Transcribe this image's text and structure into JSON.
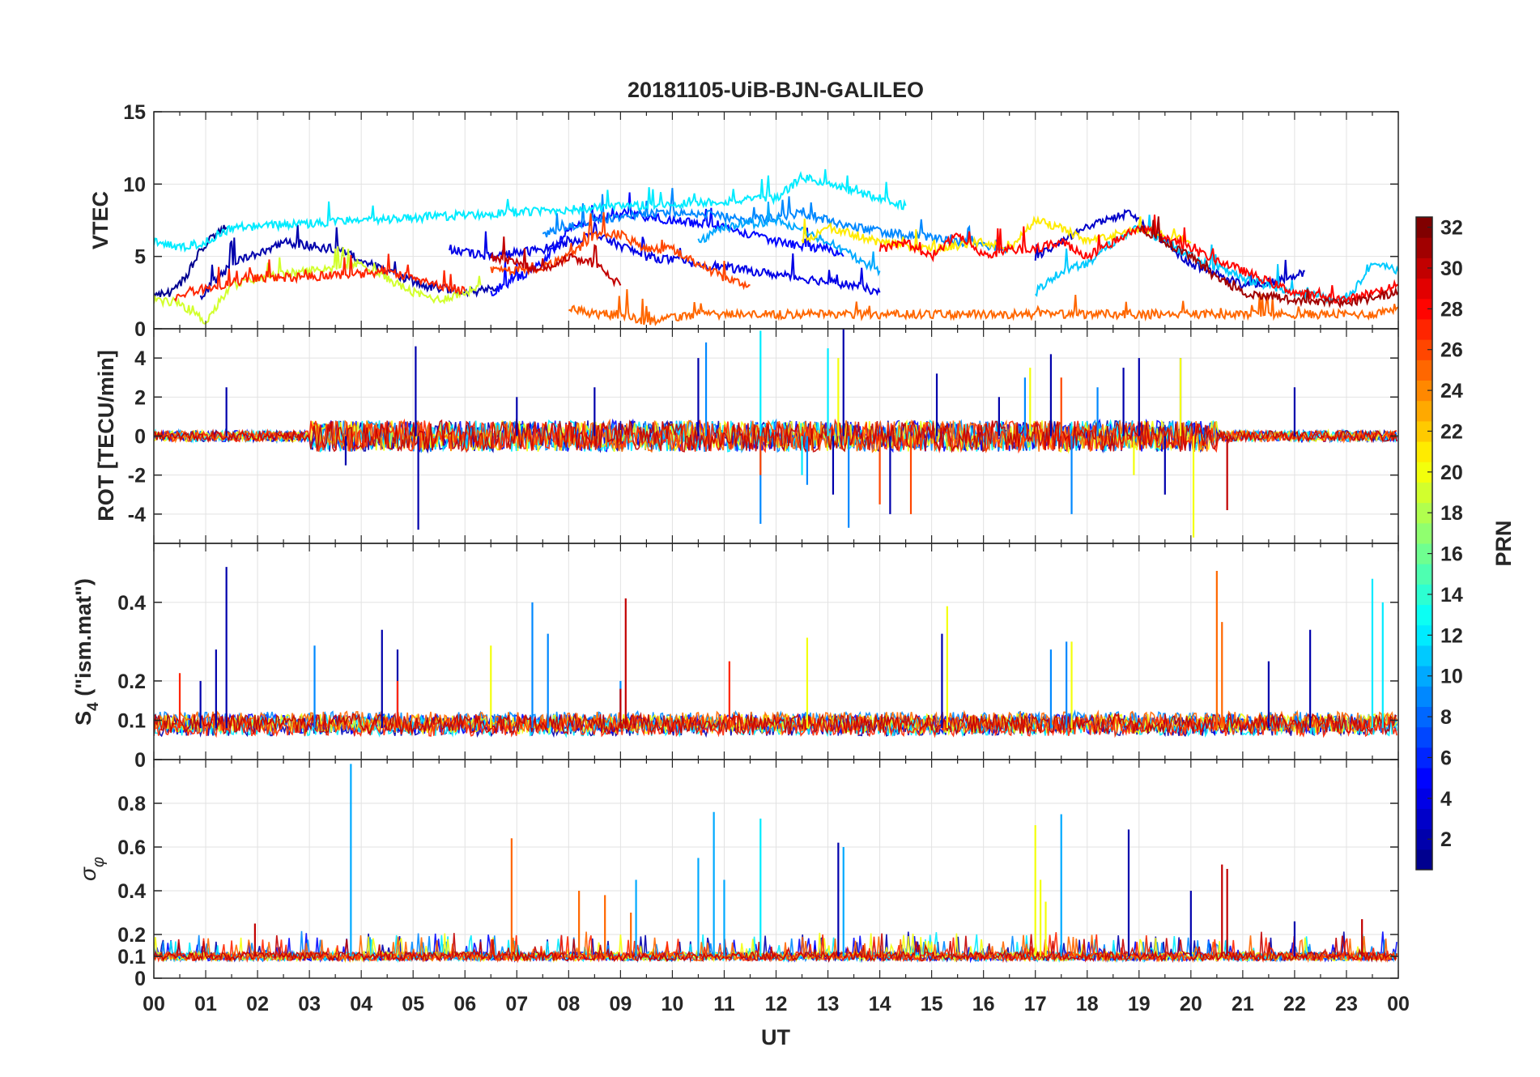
{
  "chart_data": {
    "type": "line",
    "title": "20181105-UiB-BJN-GALILEO",
    "xlabel": "UT",
    "x_ticks": [
      "00",
      "01",
      "02",
      "03",
      "04",
      "05",
      "06",
      "07",
      "08",
      "09",
      "10",
      "11",
      "12",
      "13",
      "14",
      "15",
      "16",
      "17",
      "18",
      "19",
      "20",
      "21",
      "22",
      "23",
      "00"
    ],
    "xlim": [
      0,
      24
    ],
    "colorbar": {
      "label": "PRN",
      "range": [
        1,
        32
      ],
      "ticks": [
        "2",
        "4",
        "6",
        "8",
        "10",
        "12",
        "14",
        "16",
        "18",
        "20",
        "22",
        "24",
        "26",
        "28",
        "30",
        "32"
      ],
      "colormap": [
        "#00008f",
        "#0000ff",
        "#0080ff",
        "#00ffff",
        "#80ff80",
        "#ffff00",
        "#ff8000",
        "#ff0000",
        "#800000"
      ]
    },
    "panels": [
      {
        "id": "vtec",
        "ylabel": "VTEC",
        "ylim": [
          0,
          15
        ],
        "yticks": [
          "0",
          "5",
          "10",
          "15"
        ],
        "series": [
          {
            "prn": 1,
            "x": [
              0,
              0.3,
              0.6,
              0.9,
              1.2,
              1.4
            ],
            "y": [
              2.3,
              2.5,
              3.5,
              5.5,
              6.5,
              7
            ]
          },
          {
            "prn": 2,
            "x": [
              0.9,
              1.5,
              2.5,
              3.5,
              4.5,
              5.2,
              6.0,
              6.6
            ],
            "y": [
              2.2,
              4.5,
              6.0,
              5.5,
              4.0,
              3.0,
              2.5,
              2.8
            ]
          },
          {
            "prn": 4,
            "x": [
              5.7,
              6.5,
              7.5,
              8.5,
              9.5,
              10.5,
              11.5,
              12.5,
              13.5,
              14.0
            ],
            "y": [
              5.5,
              5.0,
              5.5,
              6.5,
              5.0,
              4.5,
              4.0,
              3.5,
              3.0,
              2.5
            ]
          },
          {
            "prn": 5,
            "x": [
              6.5,
              7.5,
              8.0,
              9.0,
              10.0,
              11.0,
              12.0,
              13.0,
              13.3
            ],
            "y": [
              2.5,
              4.5,
              7.0,
              8.0,
              7.5,
              7.0,
              6.0,
              5.5,
              5.0
            ]
          },
          {
            "prn": 3,
            "x": [
              17.0,
              17.5,
              18.0,
              18.8,
              19.5,
              20.0,
              21.0,
              22.0,
              22.2
            ],
            "y": [
              5.0,
              6.0,
              7.0,
              8.0,
              6.0,
              4.5,
              3.0,
              3.5,
              4.0
            ]
          },
          {
            "prn": 9,
            "x": [
              7.5,
              8.5,
              9.5,
              10.5,
              11.5,
              12.5,
              13.5,
              14.5,
              15.5,
              16.5
            ],
            "y": [
              6.5,
              7.5,
              8.0,
              8.0,
              7.5,
              8.0,
              7.0,
              6.5,
              6.0,
              5.5
            ]
          },
          {
            "prn": 10,
            "x": [
              10.5,
              11.0,
              12.0,
              13.0,
              14.0
            ],
            "y": [
              6.0,
              7.0,
              7.5,
              6.0,
              4.0
            ]
          },
          {
            "prn": 12,
            "x": [
              0,
              0.5,
              1.0,
              1.5,
              12.0,
              12.5,
              13.0,
              13.5,
              14.0,
              14.5
            ],
            "y": [
              6.0,
              5.6,
              6.0,
              7.0,
              9.0,
              10.5,
              10.0,
              9.5,
              9.0,
              8.5
            ]
          },
          {
            "prn": 11,
            "x": [
              17.0,
              17.5,
              18.0,
              18.5,
              19.0,
              19.5,
              20.0,
              21.0,
              22.0,
              23.0,
              23.5,
              24.0
            ],
            "y": [
              2.5,
              4.0,
              4.5,
              6.0,
              7.0,
              6.0,
              5.0,
              3.5,
              2.5,
              2.0,
              4.5,
              4.0
            ]
          },
          {
            "prn": 19,
            "x": [
              0,
              0.5,
              1.0,
              1.5,
              2.0,
              3.0,
              4.0,
              4.5,
              5.0,
              5.5,
              6.0,
              6.3
            ],
            "y": [
              2.0,
              1.8,
              0.5,
              3.0,
              3.5,
              4.0,
              4.5,
              3.5,
              2.5,
              2.0,
              2.5,
              3.0
            ]
          },
          {
            "prn": 21,
            "x": [
              12.5,
              13.0,
              13.5,
              14.0,
              15.0,
              16.0,
              16.5,
              17.0,
              17.5,
              18.0,
              19.0,
              20.0
            ],
            "y": [
              6.0,
              7.0,
              6.5,
              6.0,
              5.5,
              6.0,
              5.5,
              7.5,
              7.0,
              6.0,
              7.0,
              6.0
            ]
          },
          {
            "prn": 27,
            "x": [
              0.4,
              1.0,
              2.0,
              3.0,
              4.0,
              4.5,
              5.0,
              5.5,
              6.0
            ],
            "y": [
              2.2,
              2.8,
              3.5,
              3.6,
              3.8,
              4.0,
              3.5,
              3.0,
              2.6
            ]
          },
          {
            "prn": 26,
            "x": [
              6.5,
              7.5,
              8.0,
              8.5,
              9.0,
              9.5,
              10.0,
              10.5,
              11.0,
              11.5
            ],
            "y": [
              4.0,
              4.2,
              5.0,
              6.5,
              6.5,
              5.5,
              5.5,
              4.5,
              3.5,
              3.0
            ]
          },
          {
            "prn": 25,
            "x": [
              8.0,
              8.5,
              9.0,
              9.5,
              10.0,
              10.5,
              23.5,
              24.0
            ],
            "y": [
              1.5,
              1.0,
              1.0,
              0.5,
              0.8,
              1.0,
              1.0,
              1.5
            ]
          },
          {
            "prn": 28,
            "x": [
              14.0,
              14.5,
              15.0,
              15.5,
              16.0,
              16.5,
              17.0,
              17.5,
              18.0,
              19.0,
              20.0,
              21.0,
              22.0,
              23.0,
              24.0
            ],
            "y": [
              5.5,
              6.0,
              5.0,
              6.5,
              5.0,
              5.5,
              5.5,
              6.0,
              5.0,
              7.0,
              5.5,
              4.0,
              2.5,
              2.0,
              3.0
            ]
          },
          {
            "prn": 30,
            "x": [
              6.5,
              7.0,
              7.5,
              8.0,
              8.5,
              9.0
            ],
            "y": [
              5.0,
              4.5,
              4.0,
              5.0,
              4.5,
              3.0
            ]
          },
          {
            "prn": 31,
            "x": [
              19.0,
              19.5,
              20.0,
              20.5,
              21.0,
              22.0,
              23.0,
              24.0
            ],
            "y": [
              7.0,
              6.0,
              5.0,
              3.5,
              2.5,
              2.0,
              1.8,
              2.5
            ]
          }
        ]
      },
      {
        "id": "rot",
        "ylabel": "ROT [TECU/min]",
        "ylim": [
          -5.5,
          5.5
        ],
        "yticks": [
          "-4",
          "-2",
          "0",
          "2",
          "4"
        ],
        "spike_series": [
          {
            "prn": 2,
            "x": [
              1.4,
              3.7,
              5.05,
              5.1,
              7.0,
              8.5,
              10.5,
              13.1,
              13.3,
              14.2,
              15.1,
              16.3,
              17.3,
              18.7,
              19.0,
              19.5,
              19.8,
              22.0
            ],
            "y": [
              2.5,
              -1.5,
              4.6,
              -4.8,
              2.0,
              2.5,
              4.0,
              -3.0,
              5.5,
              -4.0,
              3.2,
              2.0,
              4.2,
              3.5,
              4.0,
              -3.0,
              4.0,
              2.5
            ]
          },
          {
            "prn": 9,
            "x": [
              10.65,
              11.7,
              12.6,
              13.4,
              16.8,
              17.7,
              18.2
            ],
            "y": [
              4.8,
              -4.5,
              -2.5,
              -4.7,
              3.0,
              -4.0,
              2.5
            ]
          },
          {
            "prn": 12,
            "x": [
              11.7,
              12.5,
              13.0
            ],
            "y": [
              5.4,
              -2.0,
              4.5
            ]
          },
          {
            "prn": 20,
            "x": [
              13.2,
              16.9,
              18.9,
              19.8,
              20.05
            ],
            "y": [
              4.0,
              3.5,
              -2.0,
              4.0,
              -5.2
            ]
          },
          {
            "prn": 26,
            "x": [
              11.7,
              14.0,
              14.6,
              17.5
            ],
            "y": [
              -2.0,
              -3.5,
              -4.0,
              3.0
            ]
          },
          {
            "prn": 30,
            "x": [
              20.7
            ],
            "y": [
              -3.8
            ]
          }
        ]
      },
      {
        "id": "s4",
        "ylabel": "S4 (\"ism.mat\")",
        "ylim": [
          0,
          0.55
        ],
        "yticks": [
          "0",
          "0.1",
          "0.2",
          "0.4"
        ],
        "spike_series": [
          {
            "prn": 2,
            "x": [
              1.4,
              0.9,
              1.2,
              4.4,
              4.7,
              15.2,
              21.5,
              22.3
            ],
            "y": [
              0.49,
              0.2,
              0.28,
              0.33,
              0.28,
              0.32,
              0.25,
              0.33
            ]
          },
          {
            "prn": 9,
            "x": [
              3.1,
              7.3,
              7.6,
              9.0,
              17.3,
              17.6
            ],
            "y": [
              0.29,
              0.4,
              0.32,
              0.2,
              0.28,
              0.3
            ]
          },
          {
            "prn": 12,
            "x": [
              23.5,
              23.7
            ],
            "y": [
              0.46,
              0.4
            ]
          },
          {
            "prn": 20,
            "x": [
              6.5,
              12.6,
              15.3,
              17.7
            ],
            "y": [
              0.29,
              0.31,
              0.39,
              0.3
            ]
          },
          {
            "prn": 25,
            "x": [
              20.5,
              20.6
            ],
            "y": [
              0.48,
              0.35
            ]
          },
          {
            "prn": 30,
            "x": [
              9.1,
              9.0
            ],
            "y": [
              0.41,
              0.18
            ]
          },
          {
            "prn": 27,
            "x": [
              0.5,
              4.7,
              11.1
            ],
            "y": [
              0.22,
              0.2,
              0.25
            ]
          }
        ]
      },
      {
        "id": "sigma_phi",
        "ylabel": "σ φ",
        "ylim": [
          0,
          1
        ],
        "yticks": [
          "0",
          "0.1",
          "0.2",
          "0.4",
          "0.6",
          "0.8"
        ],
        "spike_series": [
          {
            "prn": 10,
            "x": [
              3.8,
              10.8,
              11.0,
              9.3,
              13.3,
              17.5,
              10.5
            ],
            "y": [
              0.98,
              0.76,
              0.45,
              0.45,
              0.6,
              0.75,
              0.55
            ]
          },
          {
            "prn": 2,
            "x": [
              13.2,
              18.8,
              20.0,
              22.0
            ],
            "y": [
              0.62,
              0.68,
              0.4,
              0.26
            ]
          },
          {
            "prn": 12,
            "x": [
              11.7
            ],
            "y": [
              0.73
            ]
          },
          {
            "prn": 20,
            "x": [
              17.0,
              17.1,
              17.2
            ],
            "y": [
              0.7,
              0.45,
              0.35
            ]
          },
          {
            "prn": 25,
            "x": [
              6.9,
              8.2,
              8.7,
              9.2
            ],
            "y": [
              0.64,
              0.4,
              0.38,
              0.3
            ]
          },
          {
            "prn": 30,
            "x": [
              20.6,
              20.7,
              23.3,
              1.95
            ],
            "y": [
              0.52,
              0.5,
              0.27,
              0.25
            ]
          }
        ]
      }
    ]
  }
}
